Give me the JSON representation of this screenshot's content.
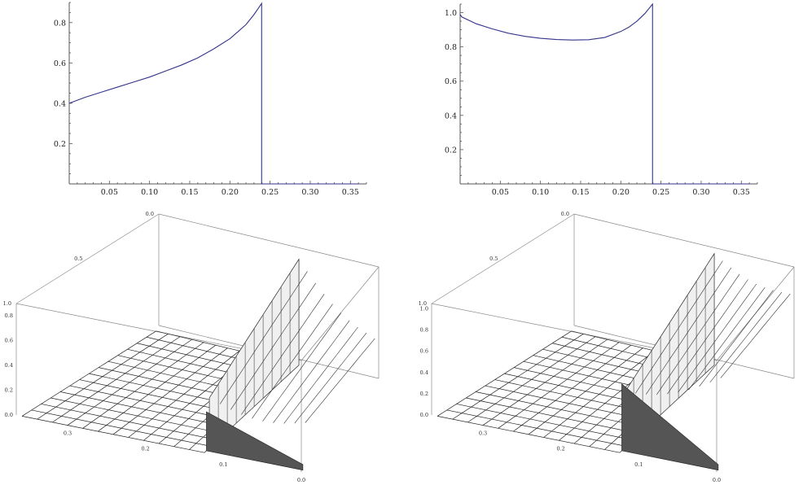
{
  "chart_data": [
    {
      "type": "line",
      "title": "",
      "xlabel": "",
      "ylabel": "",
      "xlim": [
        0,
        0.37
      ],
      "ylim": [
        0,
        0.9
      ],
      "x_ticks": [
        "0.05",
        "0.10",
        "0.15",
        "0.20",
        "0.25",
        "0.30",
        "0.35"
      ],
      "y_ticks": [
        "0.2",
        "0.4",
        "0.6",
        "0.8"
      ],
      "color": "#34338a",
      "series": [
        {
          "x": [
            0,
            0.02,
            0.04,
            0.06,
            0.08,
            0.1,
            0.12,
            0.14,
            0.16,
            0.18,
            0.2,
            0.21,
            0.22,
            0.23,
            0.2395,
            0.2395,
            0.36
          ],
          "y": [
            0.4,
            0.43,
            0.455,
            0.48,
            0.505,
            0.53,
            0.56,
            0.59,
            0.625,
            0.67,
            0.72,
            0.755,
            0.79,
            0.84,
            0.895,
            0,
            0
          ]
        }
      ]
    },
    {
      "type": "line",
      "title": "",
      "xlabel": "",
      "ylabel": "",
      "xlim": [
        0,
        0.37
      ],
      "ylim": [
        0,
        1.05
      ],
      "x_ticks": [
        "0.05",
        "0.10",
        "0.15",
        "0.20",
        "0.25",
        "0.30",
        "0.35"
      ],
      "y_ticks": [
        "0.2",
        "0.4",
        "0.6",
        "0.8",
        "1.0"
      ],
      "color": "#34338a",
      "series": [
        {
          "x": [
            0,
            0.002,
            0.02,
            0.04,
            0.06,
            0.08,
            0.1,
            0.12,
            0.14,
            0.16,
            0.18,
            0.2,
            0.21,
            0.22,
            0.23,
            0.2395,
            0.2395,
            0.36
          ],
          "y": [
            0.99,
            0.975,
            0.935,
            0.905,
            0.88,
            0.862,
            0.85,
            0.843,
            0.84,
            0.842,
            0.855,
            0.89,
            0.915,
            0.95,
            0.995,
            1.05,
            0,
            0
          ]
        }
      ]
    },
    {
      "type": "surface",
      "title": "",
      "axis_tick_labels": {
        "back_axis": [
          "0.0",
          "0.5",
          "1.0"
        ],
        "vertical_axis": [
          "0.0",
          "0.2",
          "0.4",
          "0.6",
          "0.8"
        ],
        "front_axis": [
          "0.3",
          "0.2",
          "0.1",
          "0.0"
        ]
      },
      "z_max": 0.9,
      "note_shape": "flat zero plane for x > 0.24, ridge rising at x ≈ 0.24"
    },
    {
      "type": "surface",
      "title": "",
      "axis_tick_labels": {
        "back_axis": [
          "0.0",
          "0.5",
          "1.0"
        ],
        "vertical_axis": [
          "0.0",
          "0.2",
          "0.4",
          "0.6",
          "0.8",
          "1.0"
        ],
        "front_axis": [
          "0.3",
          "0.2",
          "0.1",
          "0.0"
        ]
      },
      "z_max": 1.05,
      "note_shape": "flat zero plane for x > 0.24, ridge rising at x ≈ 0.24"
    }
  ]
}
